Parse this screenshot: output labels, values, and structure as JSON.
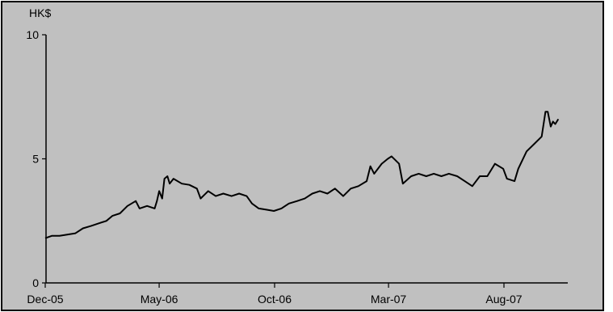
{
  "colors": {
    "plot_background": "#c0c0c0",
    "frame": "#000000",
    "series_line": "#000000"
  },
  "chart_data": {
    "type": "line",
    "title": "",
    "xlabel": "",
    "ylabel": "HK$",
    "x_type": "date",
    "xlim": [
      "2005-12-01",
      "2007-10-31"
    ],
    "ylim": [
      0,
      10
    ],
    "y_ticks": [
      0,
      5,
      10
    ],
    "x_ticks": [
      {
        "date": "2005-12-01",
        "label": "Dec-05"
      },
      {
        "date": "2006-05-01",
        "label": "May-06"
      },
      {
        "date": "2006-10-01",
        "label": "Oct-06"
      },
      {
        "date": "2007-03-01",
        "label": "Mar-07"
      },
      {
        "date": "2007-08-01",
        "label": "Aug-07"
      }
    ],
    "grid": false,
    "legend": "none",
    "series": [
      {
        "points": [
          [
            "2005-12-01",
            1.8
          ],
          [
            "2005-12-10",
            1.9
          ],
          [
            "2005-12-20",
            1.9
          ],
          [
            "2005-12-31",
            1.95
          ],
          [
            "2006-01-10",
            2.0
          ],
          [
            "2006-01-20",
            2.2
          ],
          [
            "2006-01-31",
            2.3
          ],
          [
            "2006-02-10",
            2.4
          ],
          [
            "2006-02-20",
            2.5
          ],
          [
            "2006-02-28",
            2.7
          ],
          [
            "2006-03-10",
            2.8
          ],
          [
            "2006-03-20",
            3.1
          ],
          [
            "2006-03-31",
            3.3
          ],
          [
            "2006-04-05",
            3.0
          ],
          [
            "2006-04-15",
            3.1
          ],
          [
            "2006-04-25",
            3.0
          ],
          [
            "2006-04-28",
            3.3
          ],
          [
            "2006-05-01",
            3.7
          ],
          [
            "2006-05-05",
            3.4
          ],
          [
            "2006-05-08",
            4.2
          ],
          [
            "2006-05-12",
            4.3
          ],
          [
            "2006-05-15",
            4.0
          ],
          [
            "2006-05-20",
            4.2
          ],
          [
            "2006-05-31",
            4.0
          ],
          [
            "2006-06-10",
            3.95
          ],
          [
            "2006-06-20",
            3.8
          ],
          [
            "2006-06-25",
            3.4
          ],
          [
            "2006-07-05",
            3.7
          ],
          [
            "2006-07-15",
            3.5
          ],
          [
            "2006-07-25",
            3.6
          ],
          [
            "2006-08-05",
            3.5
          ],
          [
            "2006-08-15",
            3.6
          ],
          [
            "2006-08-25",
            3.5
          ],
          [
            "2006-09-01",
            3.2
          ],
          [
            "2006-09-10",
            3.0
          ],
          [
            "2006-09-20",
            2.95
          ],
          [
            "2006-09-30",
            2.9
          ],
          [
            "2006-10-10",
            3.0
          ],
          [
            "2006-10-20",
            3.2
          ],
          [
            "2006-10-31",
            3.3
          ],
          [
            "2006-11-10",
            3.4
          ],
          [
            "2006-11-20",
            3.6
          ],
          [
            "2006-11-30",
            3.7
          ],
          [
            "2006-12-10",
            3.6
          ],
          [
            "2006-12-20",
            3.8
          ],
          [
            "2006-12-31",
            3.5
          ],
          [
            "2007-01-10",
            3.8
          ],
          [
            "2007-01-20",
            3.9
          ],
          [
            "2007-01-31",
            4.1
          ],
          [
            "2007-02-05",
            4.7
          ],
          [
            "2007-02-10",
            4.4
          ],
          [
            "2007-02-20",
            4.8
          ],
          [
            "2007-02-28",
            5.0
          ],
          [
            "2007-03-05",
            5.1
          ],
          [
            "2007-03-15",
            4.8
          ],
          [
            "2007-03-20",
            4.0
          ],
          [
            "2007-03-31",
            4.3
          ],
          [
            "2007-04-10",
            4.4
          ],
          [
            "2007-04-20",
            4.3
          ],
          [
            "2007-04-30",
            4.4
          ],
          [
            "2007-05-10",
            4.3
          ],
          [
            "2007-05-20",
            4.4
          ],
          [
            "2007-05-31",
            4.3
          ],
          [
            "2007-06-10",
            4.1
          ],
          [
            "2007-06-20",
            3.9
          ],
          [
            "2007-06-30",
            4.3
          ],
          [
            "2007-07-10",
            4.3
          ],
          [
            "2007-07-20",
            4.8
          ],
          [
            "2007-07-31",
            4.6
          ],
          [
            "2007-08-05",
            4.2
          ],
          [
            "2007-08-15",
            4.1
          ],
          [
            "2007-08-20",
            4.6
          ],
          [
            "2007-08-31",
            5.3
          ],
          [
            "2007-09-10",
            5.6
          ],
          [
            "2007-09-20",
            5.9
          ],
          [
            "2007-09-25",
            6.9
          ],
          [
            "2007-09-28",
            6.9
          ],
          [
            "2007-10-02",
            6.3
          ],
          [
            "2007-10-05",
            6.5
          ],
          [
            "2007-10-08",
            6.4
          ],
          [
            "2007-10-12",
            6.6
          ]
        ]
      }
    ]
  }
}
